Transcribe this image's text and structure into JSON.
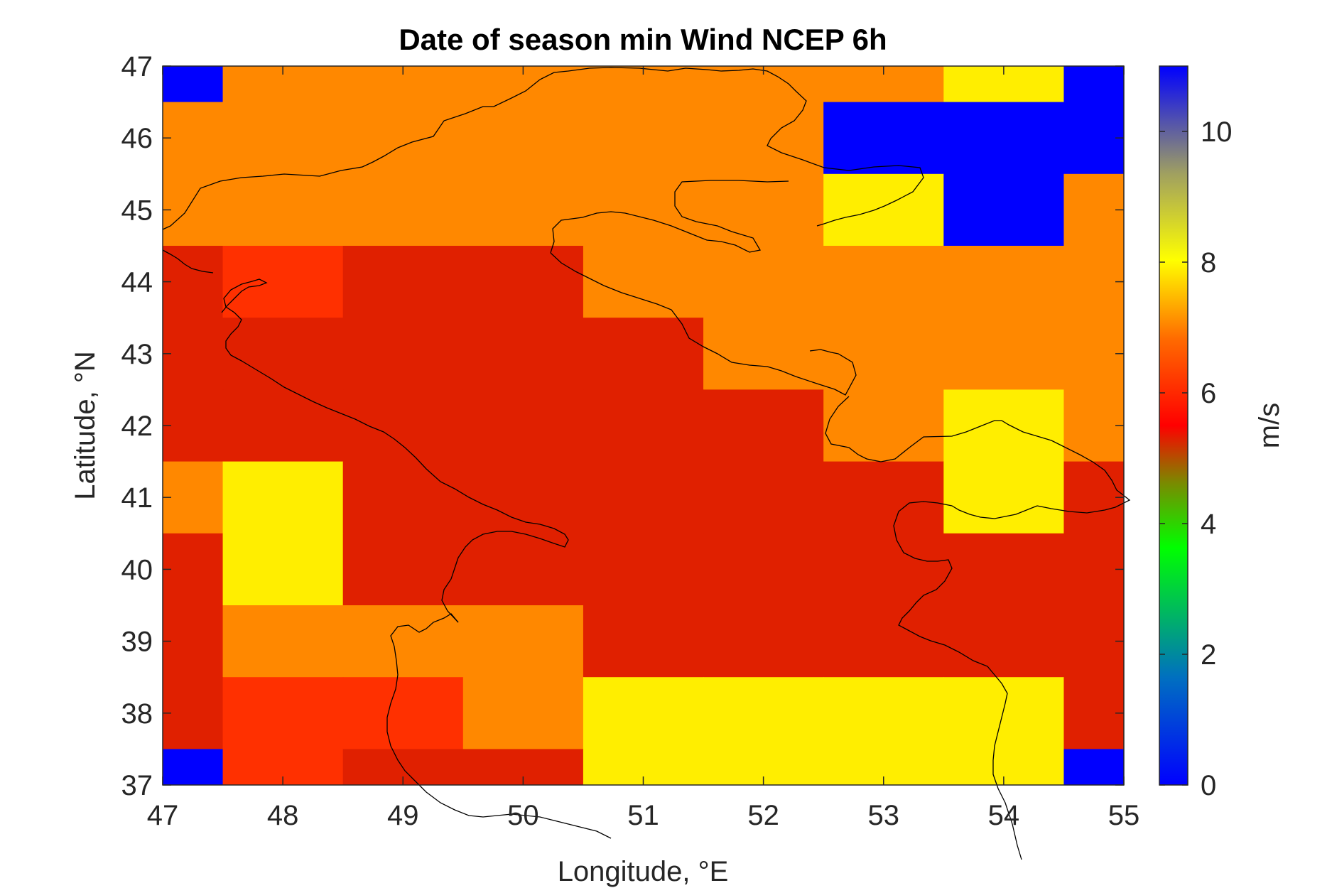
{
  "chart_data": {
    "type": "heatmap",
    "title": "Date of season min Wind NCEP 6h",
    "xlabel": "Longitude, °E",
    "ylabel": "Latitude, °N",
    "xlim": [
      47,
      55
    ],
    "ylim": [
      37,
      47
    ],
    "x_ticks": [
      "47",
      "48",
      "49",
      "50",
      "51",
      "52",
      "53",
      "54",
      "55"
    ],
    "y_ticks": [
      "37",
      "38",
      "39",
      "40",
      "41",
      "42",
      "43",
      "44",
      "45",
      "46",
      "47"
    ],
    "colorbar": {
      "label": "m/s",
      "range": [
        0,
        11
      ],
      "ticks": [
        "0",
        "2",
        "4",
        "6",
        "8",
        "10"
      ],
      "colormap": [
        "#0000ff",
        "#00ff00",
        "#ff0000",
        "#ff8c00",
        "#ffff00",
        "#0000ff"
      ]
    },
    "grid": false,
    "cell_lon_centers": [
      47,
      48,
      49,
      50,
      51,
      52,
      53,
      54,
      55
    ],
    "cell_lat_centers": [
      47,
      46,
      45,
      44,
      43,
      42,
      41,
      40,
      39,
      38,
      37
    ],
    "values_rows_top_to_bottom": [
      [
        11.0,
        7.0,
        7.0,
        7.0,
        7.0,
        7.0,
        7.0,
        8.0,
        11.0
      ],
      [
        7.0,
        7.0,
        7.0,
        7.0,
        7.0,
        7.0,
        11.0,
        11.0,
        11.0
      ],
      [
        7.0,
        7.0,
        7.0,
        7.0,
        7.0,
        7.0,
        8.0,
        11.0,
        7.0
      ],
      [
        5.5,
        6.0,
        5.5,
        5.5,
        7.0,
        7.0,
        7.0,
        7.0,
        7.0
      ],
      [
        5.5,
        5.5,
        5.5,
        5.5,
        5.5,
        7.0,
        7.0,
        7.0,
        7.0
      ],
      [
        5.5,
        5.5,
        5.5,
        5.5,
        5.5,
        5.5,
        7.0,
        8.0,
        7.0
      ],
      [
        7.0,
        8.0,
        5.5,
        5.5,
        5.5,
        5.5,
        5.5,
        8.0,
        5.5
      ],
      [
        5.5,
        8.0,
        5.5,
        5.5,
        5.5,
        5.5,
        5.5,
        5.5,
        5.5
      ],
      [
        5.5,
        7.0,
        7.0,
        7.0,
        5.5,
        5.5,
        5.5,
        5.5,
        5.5
      ],
      [
        5.5,
        6.0,
        6.0,
        7.0,
        8.0,
        8.0,
        8.0,
        8.0,
        5.5
      ],
      [
        11.0,
        6.0,
        5.5,
        5.5,
        8.0,
        8.0,
        8.0,
        8.0,
        11.0
      ]
    ]
  }
}
